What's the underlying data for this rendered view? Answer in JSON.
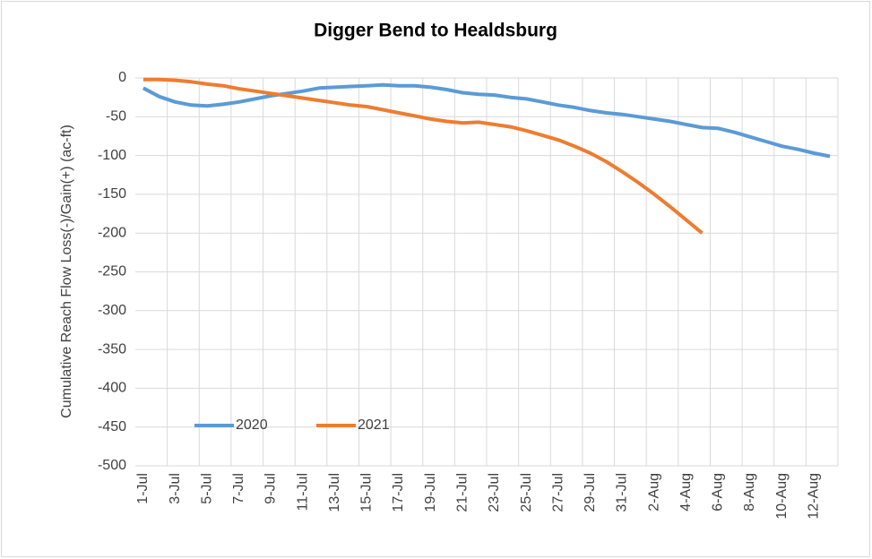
{
  "chart_data": {
    "type": "line",
    "title": "Digger Bend to Healdsburg",
    "y_label": "Cumulative Reach Flow Loss(-)/Gain(+)  (ac-ft)",
    "categories": [
      "1-Jul",
      null,
      "3-Jul",
      null,
      "5-Jul",
      null,
      "7-Jul",
      null,
      "9-Jul",
      null,
      "11-Jul",
      null,
      "13-Jul",
      null,
      "15-Jul",
      null,
      "17-Jul",
      null,
      "19-Jul",
      null,
      "21-Jul",
      null,
      "23-Jul",
      null,
      "25-Jul",
      null,
      "27-Jul",
      null,
      "29-Jul",
      null,
      "31-Jul",
      null,
      "2-Aug",
      null,
      "4-Aug",
      null,
      "6-Aug",
      null,
      "8-Aug",
      null,
      "10-Aug",
      null,
      "12-Aug",
      null
    ],
    "series": [
      {
        "name": "2020",
        "color": "#5b9bd5",
        "values": [
          -13,
          -24,
          -31,
          -35,
          -36,
          -34,
          -31,
          -27,
          -23,
          -20,
          -17,
          -13,
          -12,
          -11,
          -10,
          -9,
          -10,
          -10,
          -12,
          -15,
          -19,
          -21,
          -22,
          -25,
          -27,
          -31,
          -35,
          -38,
          -42,
          -45,
          -47,
          -50,
          -53,
          -56,
          -60,
          -64,
          -65,
          -70,
          -76,
          -82,
          -88,
          -92,
          -97,
          -101
        ]
      },
      {
        "name": "2021",
        "color": "#ed7d31",
        "values": [
          -2,
          -2,
          -3,
          -5,
          -8,
          -10,
          -14,
          -17,
          -20,
          -23,
          -26,
          -29,
          -32,
          -35,
          -37,
          -41,
          -45,
          -49,
          -53,
          -56,
          -58,
          -57,
          -60,
          -63,
          -68,
          -74,
          -80,
          -88,
          -97,
          -108,
          -121,
          -135,
          -150,
          -166,
          -183,
          -200,
          null,
          null,
          null,
          null,
          null,
          null,
          null,
          null
        ]
      }
    ],
    "ylim": [
      -500,
      0
    ],
    "yticks": [
      0,
      -50,
      -100,
      -150,
      -200,
      -250,
      -300,
      -350,
      -400,
      -450,
      -500
    ],
    "grid": true,
    "legend": "lower left"
  }
}
